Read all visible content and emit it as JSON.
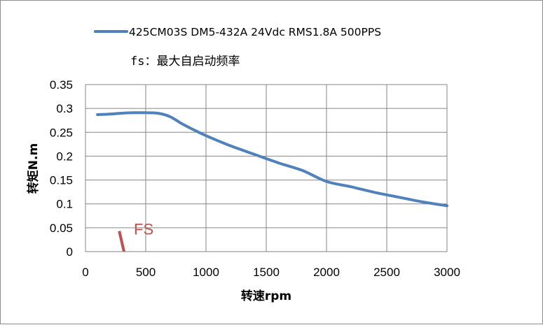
{
  "chart_data": {
    "type": "line",
    "legend": {
      "position": "top"
    },
    "note": "fs：最大自启动频率",
    "xlabel": "转速rpm",
    "ylabel": "转矩N.m",
    "xlim": [
      0,
      3000
    ],
    "ylim": [
      0,
      0.35
    ],
    "grid": true,
    "x_ticks": [
      "0",
      "500",
      "1000",
      "1500",
      "2000",
      "2500",
      "3000"
    ],
    "y_ticks": [
      "0",
      "0.05",
      "0.1",
      "0.15",
      "0.2",
      "0.25",
      "0.3",
      "0.35"
    ],
    "series": [
      {
        "name": "425CM03S DM5-432A 24Vdc RMS1.8A 500PPS",
        "color": "#4f81bd",
        "x": [
          100,
          200,
          300,
          400,
          500,
          600,
          700,
          800,
          900,
          1000,
          1200,
          1400,
          1600,
          1800,
          2000,
          2200,
          2400,
          2600,
          2800,
          3000
        ],
        "y": [
          0.287,
          0.288,
          0.29,
          0.291,
          0.291,
          0.29,
          0.283,
          0.268,
          0.255,
          0.243,
          0.222,
          0.204,
          0.186,
          0.17,
          0.147,
          0.136,
          0.124,
          0.114,
          0.104,
          0.096
        ]
      }
    ],
    "annotations": [
      {
        "text": "FS",
        "color": "#c0504d",
        "x": [
          280,
          320
        ],
        "y": [
          0.043,
          0.0
        ]
      }
    ]
  }
}
